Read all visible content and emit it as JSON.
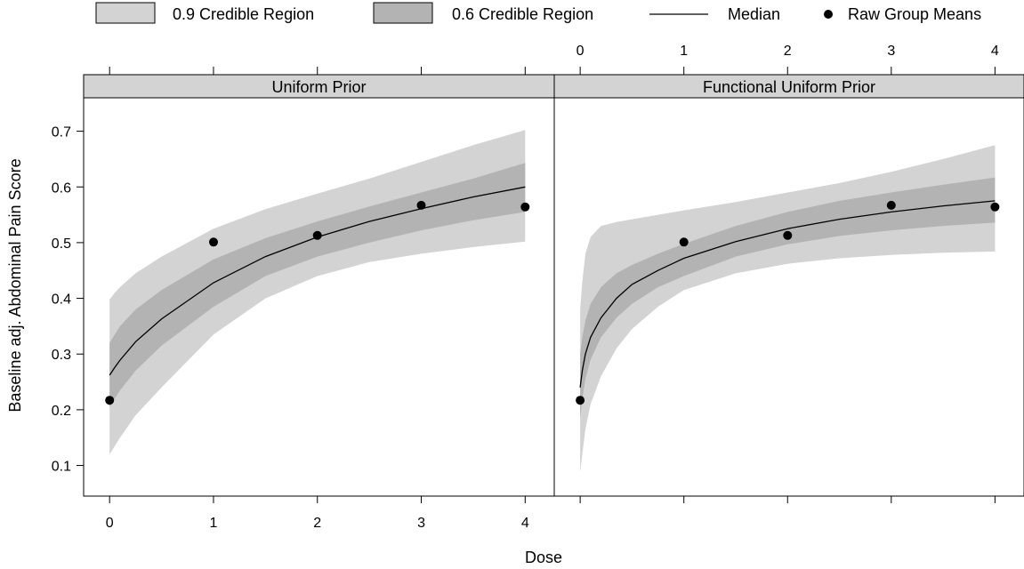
{
  "chart_data": {
    "type": "line",
    "xlabel": "Dose",
    "ylabel": "Baseline adj. Abdominal Pain Score",
    "xlim": [
      -0.25,
      4.28
    ],
    "ylim": [
      0.045,
      0.76
    ],
    "x_ticks": [
      "0",
      "1",
      "2",
      "3",
      "4"
    ],
    "y_ticks": [
      "0.1",
      "0.2",
      "0.3",
      "0.4",
      "0.5",
      "0.6",
      "0.7"
    ],
    "grid": false,
    "legend_position": "top",
    "legend": [
      {
        "label": "0.9 Credible Region",
        "kind": "box",
        "color": "#d3d3d3"
      },
      {
        "label": "0.6 Credible Region",
        "kind": "box",
        "color": "#b3b3b3"
      },
      {
        "label": "Median",
        "kind": "line",
        "color": "#000000"
      },
      {
        "label": "Raw Group Means",
        "kind": "point",
        "color": "#000000"
      }
    ],
    "colors": {
      "band90": "#d3d3d3",
      "band60": "#b3b3b3",
      "strip": "#d3d3d3"
    },
    "points": {
      "x": [
        0,
        1,
        2,
        3,
        4
      ],
      "y": [
        0.217,
        0.501,
        0.513,
        0.567,
        0.564
      ]
    },
    "panels": [
      {
        "title": "Uniform Prior",
        "x": [
          0,
          0.05,
          0.1,
          0.25,
          0.5,
          1,
          1.5,
          2,
          2.5,
          3,
          3.5,
          4
        ],
        "median": [
          0.262,
          0.276,
          0.289,
          0.322,
          0.363,
          0.428,
          0.475,
          0.51,
          0.538,
          0.561,
          0.582,
          0.6
        ],
        "q05": [
          0.12,
          0.135,
          0.15,
          0.19,
          0.24,
          0.335,
          0.4,
          0.44,
          0.465,
          0.48,
          0.492,
          0.502
        ],
        "q20": [
          0.205,
          0.22,
          0.235,
          0.27,
          0.315,
          0.385,
          0.44,
          0.475,
          0.5,
          0.522,
          0.54,
          0.555
        ],
        "q80": [
          0.32,
          0.335,
          0.35,
          0.38,
          0.415,
          0.47,
          0.508,
          0.538,
          0.565,
          0.59,
          0.615,
          0.643
        ],
        "q95": [
          0.398,
          0.41,
          0.42,
          0.445,
          0.475,
          0.525,
          0.56,
          0.588,
          0.615,
          0.645,
          0.675,
          0.702
        ]
      },
      {
        "title": "Functional Uniform Prior",
        "x": [
          0,
          0.02,
          0.05,
          0.1,
          0.2,
          0.35,
          0.5,
          0.75,
          1,
          1.5,
          2,
          2.5,
          3,
          3.5,
          4
        ],
        "median": [
          0.24,
          0.27,
          0.3,
          0.33,
          0.365,
          0.4,
          0.425,
          0.45,
          0.472,
          0.502,
          0.525,
          0.542,
          0.555,
          0.566,
          0.575
        ],
        "q05": [
          0.088,
          0.12,
          0.165,
          0.21,
          0.26,
          0.31,
          0.345,
          0.385,
          0.415,
          0.445,
          0.462,
          0.472,
          0.478,
          0.482,
          0.484
        ],
        "q20": [
          0.185,
          0.22,
          0.255,
          0.29,
          0.33,
          0.365,
          0.39,
          0.42,
          0.44,
          0.475,
          0.497,
          0.512,
          0.522,
          0.53,
          0.536
        ],
        "q80": [
          0.3,
          0.33,
          0.36,
          0.39,
          0.42,
          0.445,
          0.46,
          0.48,
          0.498,
          0.53,
          0.555,
          0.575,
          0.59,
          0.604,
          0.617
        ],
        "q95": [
          0.38,
          0.43,
          0.48,
          0.51,
          0.53,
          0.537,
          0.542,
          0.55,
          0.558,
          0.573,
          0.59,
          0.607,
          0.627,
          0.65,
          0.675
        ]
      }
    ]
  }
}
